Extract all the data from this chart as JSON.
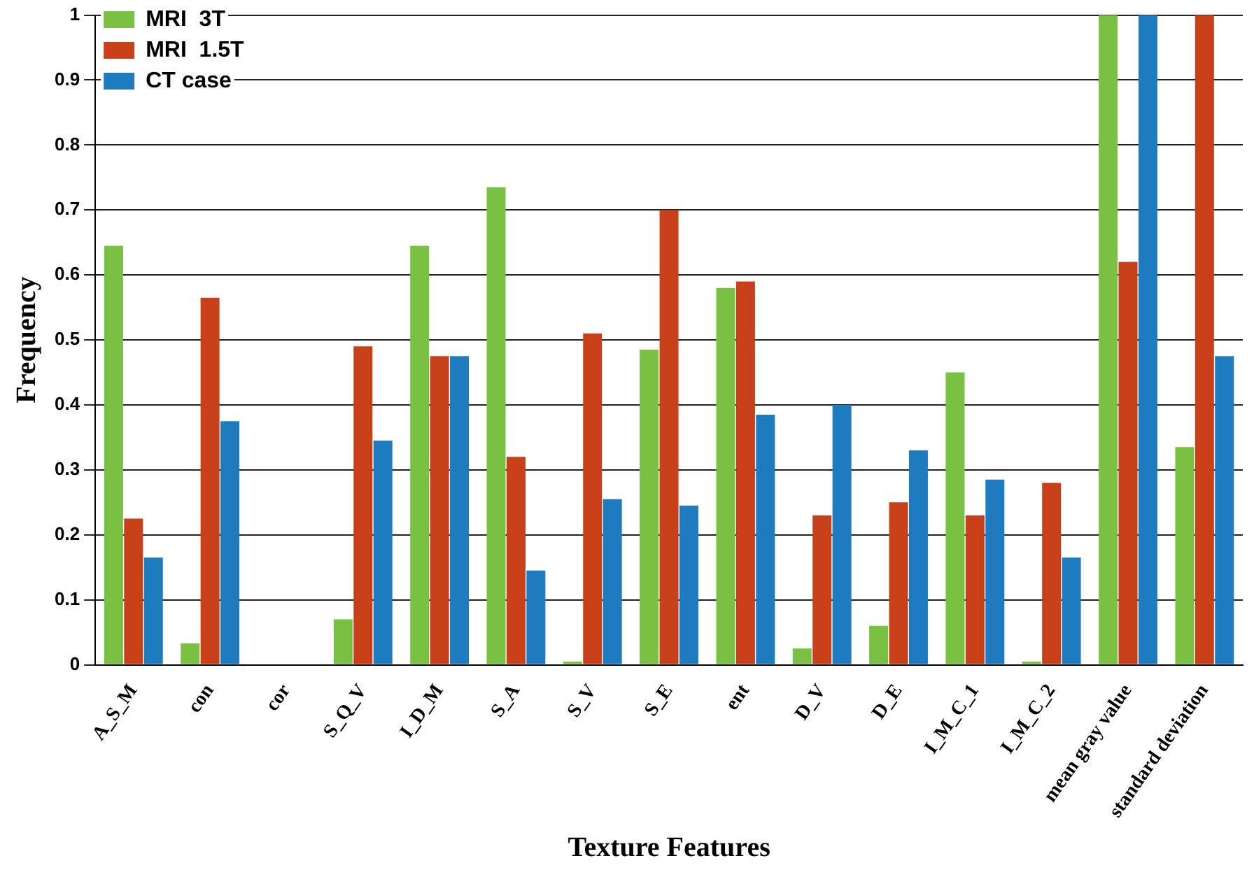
{
  "chart_data": {
    "type": "bar",
    "xlabel": "Texture Features",
    "ylabel": "Frequency",
    "categories": [
      "A_S_M",
      "con",
      "cor",
      "S_Q_V",
      "I_D_M",
      "S_A",
      "S_V",
      "S_E",
      "ent",
      "D_V",
      "D_E",
      "I_M_C_1",
      "I_M_C_2",
      "mean gray value",
      "standard deviation"
    ],
    "series": [
      {
        "name": "MRI  3T",
        "color": "#7ac143",
        "values": [
          0.645,
          0.033,
          0,
          0.07,
          0.645,
          0.735,
          0.005,
          0.485,
          0.58,
          0.025,
          0.06,
          0.45,
          0.005,
          1,
          0.335
        ]
      },
      {
        "name": "MRI  1.5T",
        "color": "#c8401a",
        "values": [
          0.225,
          0.565,
          0,
          0.49,
          0.475,
          0.32,
          0.51,
          0.7,
          0.59,
          0.23,
          0.25,
          0.23,
          0.28,
          0.62,
          1
        ]
      },
      {
        "name": "CT case",
        "color": "#1f7bc0",
        "values": [
          0.165,
          0.375,
          0,
          0.345,
          0.475,
          0.145,
          0.255,
          0.245,
          0.385,
          0.4,
          0.33,
          0.285,
          0.165,
          1,
          0.475
        ]
      }
    ],
    "ylim": [
      0,
      1
    ],
    "yticks": [
      0,
      0.1,
      0.2,
      0.3,
      0.4,
      0.5,
      0.6,
      0.7,
      0.8,
      0.9,
      1
    ],
    "grid": "y",
    "legend": "top left"
  }
}
